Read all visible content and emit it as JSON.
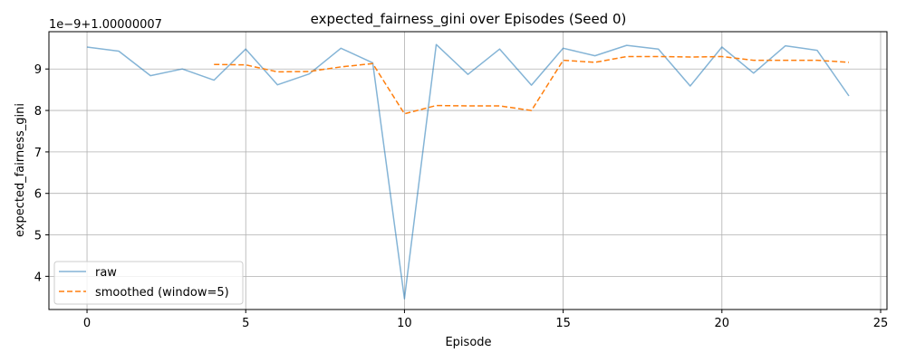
{
  "chart_data": {
    "type": "line",
    "title": "expected_fairness_gini over Episodes (Seed 0)",
    "xlabel": "Episode",
    "ylabel": "expected_fairness_gini",
    "y_offset_text": "1e−9+1.00000007",
    "xlim": [
      -1.2,
      25.2
    ],
    "ylim": [
      3.2,
      9.9
    ],
    "x_ticks": [
      0,
      5,
      10,
      15,
      20,
      25
    ],
    "y_ticks": [
      4,
      5,
      6,
      7,
      8,
      9
    ],
    "grid": true,
    "legend_position": "lower-left",
    "series": [
      {
        "name": "raw",
        "color": "#1f77b4",
        "style": "solid",
        "x": [
          0,
          1,
          2,
          3,
          4,
          5,
          6,
          7,
          8,
          9,
          10,
          11,
          12,
          13,
          14,
          15,
          16,
          17,
          18,
          19,
          20,
          21,
          22,
          23,
          24
        ],
        "values": [
          9.53,
          9.43,
          8.84,
          9.0,
          8.73,
          9.48,
          8.62,
          8.88,
          9.5,
          9.15,
          3.46,
          9.59,
          8.87,
          9.48,
          8.61,
          9.5,
          9.32,
          9.57,
          9.48,
          8.59,
          9.53,
          8.9,
          9.56,
          9.45,
          8.35
        ]
      },
      {
        "name": "smoothed (window=5)",
        "color": "#ff7f0e",
        "style": "dashed",
        "x": [
          4,
          5,
          6,
          7,
          8,
          9,
          10,
          11,
          12,
          13,
          14,
          15,
          16,
          17,
          18,
          19,
          20,
          21,
          22,
          23,
          24
        ],
        "values": [
          9.11,
          9.1,
          8.93,
          8.94,
          9.05,
          9.13,
          7.92,
          8.12,
          8.11,
          8.11,
          8.0,
          9.21,
          9.16,
          9.3,
          9.3,
          9.29,
          9.3,
          9.21,
          9.21,
          9.21,
          9.16
        ]
      }
    ]
  }
}
